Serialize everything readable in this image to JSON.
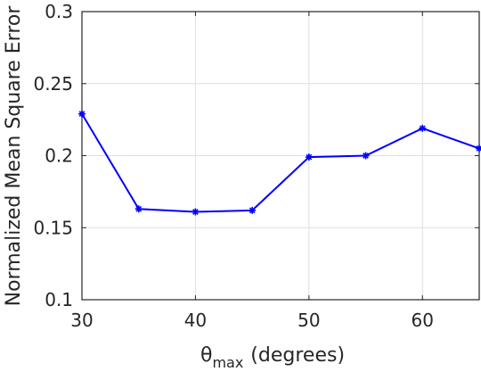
{
  "chart_data": {
    "type": "line",
    "title": "",
    "xlabel": {
      "symbol": "θ",
      "subscript": "max",
      "unit": "(degrees)"
    },
    "ylabel": "Normalized Mean Square Error",
    "xlim": [
      30,
      65
    ],
    "ylim": [
      0.1,
      0.3
    ],
    "x_ticks": [
      30,
      40,
      50,
      60
    ],
    "x_tick_labels": [
      "30",
      "40",
      "50",
      "60"
    ],
    "y_ticks": [
      0.1,
      0.15,
      0.2,
      0.25,
      0.3
    ],
    "y_tick_labels": [
      "0.1",
      "0.15",
      "0.2",
      "0.25",
      "0.3"
    ],
    "grid": true,
    "series": [
      {
        "color": "#0000ff",
        "marker": "asterisk",
        "x": [
          30,
          35,
          40,
          45,
          50,
          55,
          60,
          65
        ],
        "y": [
          0.229,
          0.163,
          0.161,
          0.162,
          0.199,
          0.2,
          0.219,
          0.205
        ]
      }
    ]
  }
}
